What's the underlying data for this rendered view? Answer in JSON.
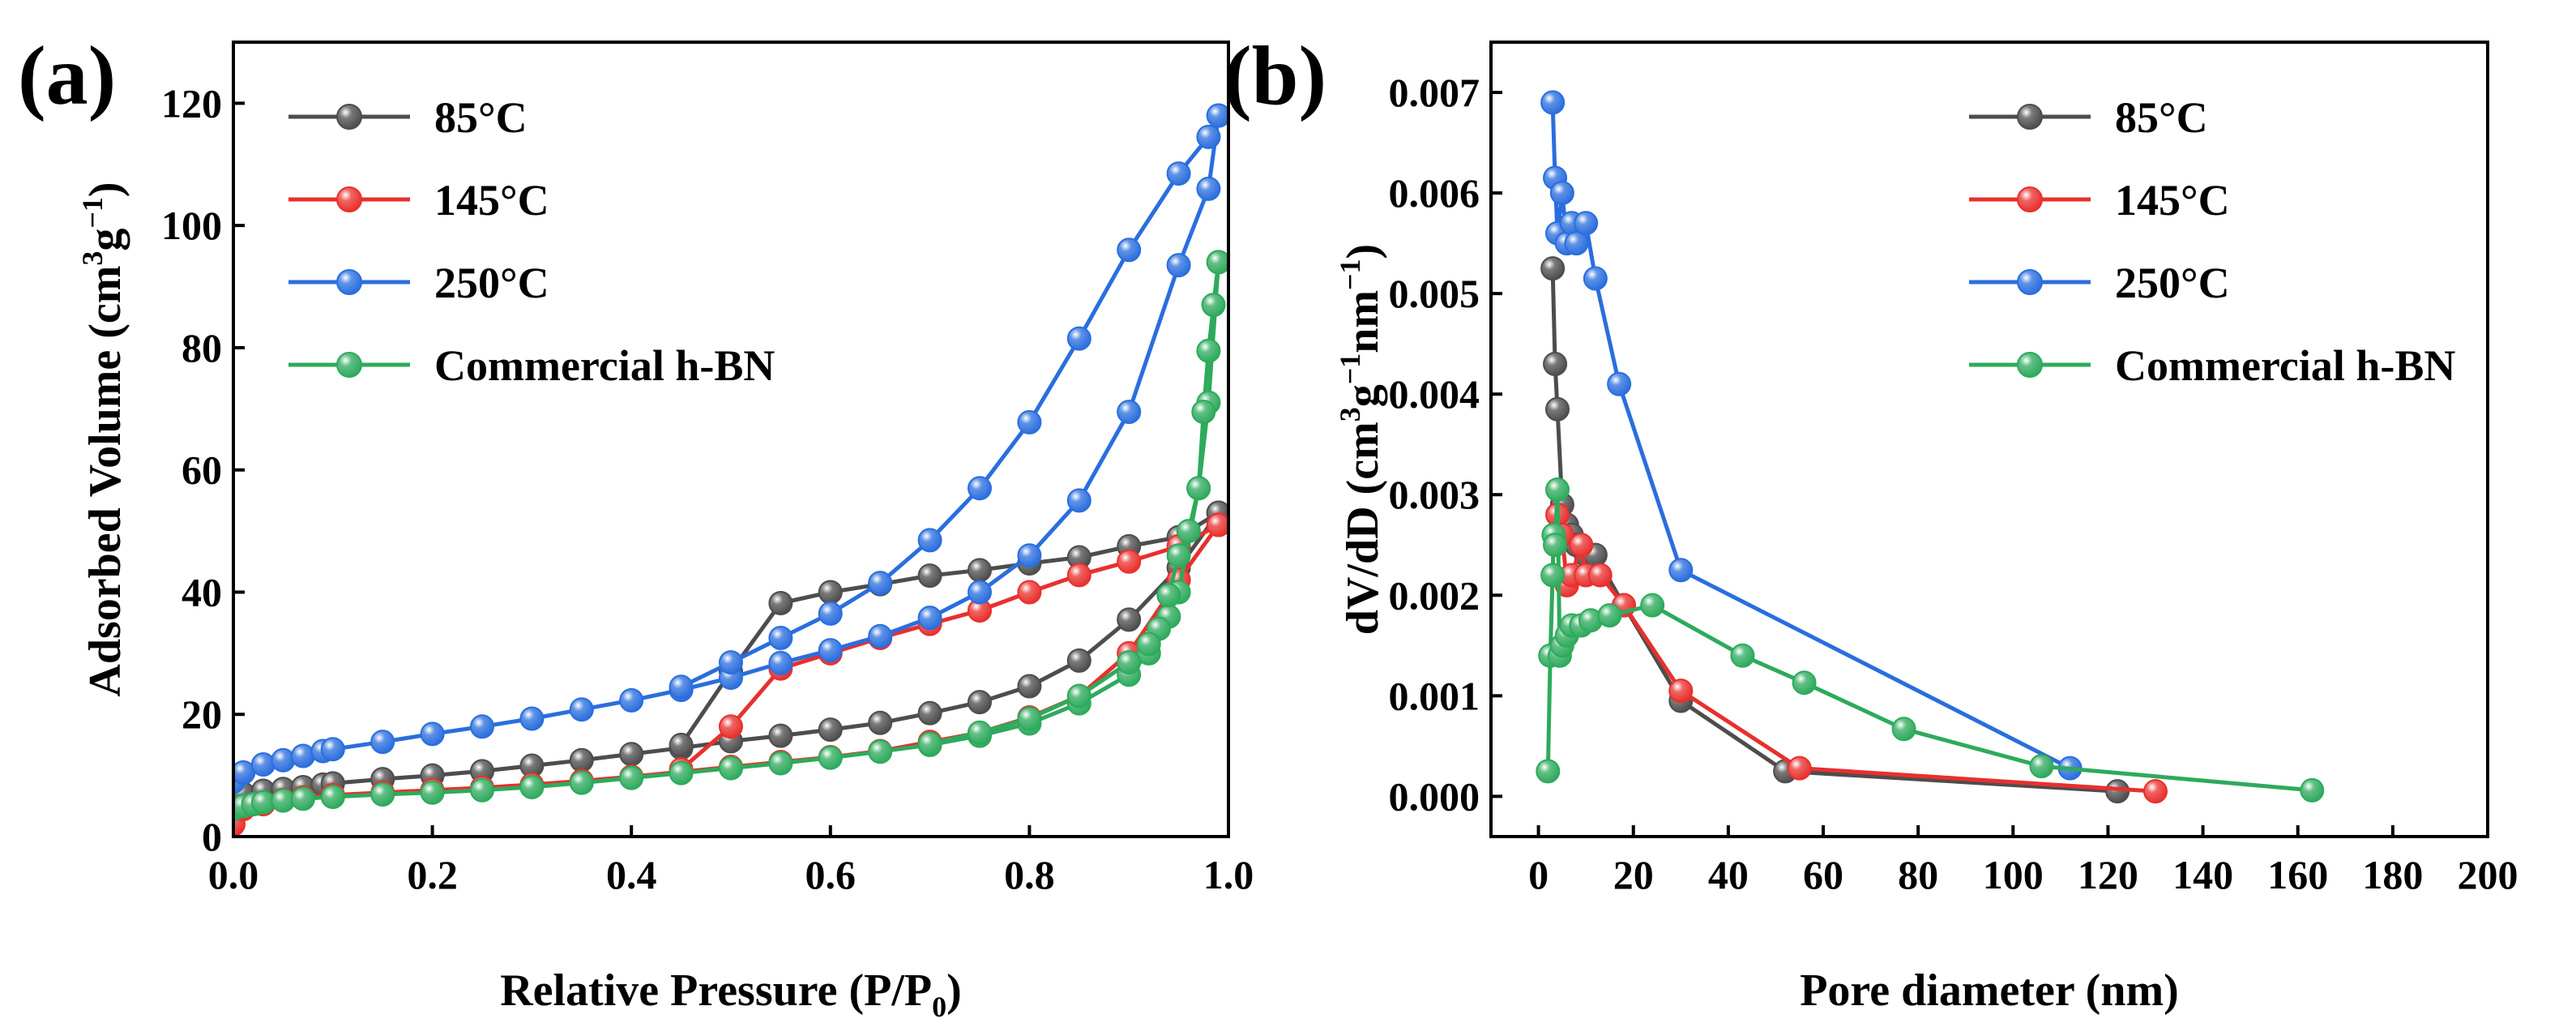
{
  "chart_data": [
    {
      "panel_label": "(a)",
      "type": "line",
      "xlabel": "Relative Pressure (P/P",
      "xlabel_sub": "0",
      "xlabel_end": ")",
      "ylabel": "Adsorbed Volume (cm",
      "ylabel_sup1": "3",
      "ylabel_mid": "g",
      "ylabel_sup2": "−1",
      "ylabel_end": ")",
      "xlim": [
        0.0,
        1.0
      ],
      "ylim": [
        0,
        130
      ],
      "xticks": [
        "0.0",
        "0.2",
        "0.4",
        "0.6",
        "0.8",
        "1.0"
      ],
      "xtick_values": [
        0.0,
        0.2,
        0.4,
        0.6,
        0.8,
        1.0
      ],
      "yticks": [
        "0",
        "20",
        "40",
        "60",
        "80",
        "100",
        "120"
      ],
      "ytick_values": [
        0,
        20,
        40,
        60,
        80,
        100,
        120
      ],
      "grid": false,
      "legend_position": "top-left",
      "series": [
        {
          "name": "85°C",
          "color": "#4d4d4d",
          "adsorption": [
            [
              0.0,
              6
            ],
            [
              0.01,
              7
            ],
            [
              0.03,
              7.5
            ],
            [
              0.05,
              7.8
            ],
            [
              0.07,
              8.1
            ],
            [
              0.09,
              8.5
            ],
            [
              0.1,
              8.7
            ],
            [
              0.15,
              9.4
            ],
            [
              0.2,
              10
            ],
            [
              0.25,
              10.7
            ],
            [
              0.3,
              11.6
            ],
            [
              0.35,
              12.5
            ],
            [
              0.4,
              13.5
            ],
            [
              0.45,
              14.5
            ],
            [
              0.5,
              15.6
            ],
            [
              0.55,
              16.5
            ],
            [
              0.6,
              17.5
            ],
            [
              0.65,
              18.6
            ],
            [
              0.7,
              20.2
            ],
            [
              0.75,
              22
            ],
            [
              0.8,
              24.6
            ],
            [
              0.85,
              28.8
            ],
            [
              0.9,
              35.5
            ],
            [
              0.95,
              44
            ],
            [
              0.99,
              53
            ]
          ],
          "desorption": [
            [
              0.99,
              53
            ],
            [
              0.95,
              49
            ],
            [
              0.9,
              47.5
            ],
            [
              0.85,
              45.7
            ],
            [
              0.8,
              44.7
            ],
            [
              0.75,
              43.6
            ],
            [
              0.7,
              42.7
            ],
            [
              0.65,
              41.3
            ],
            [
              0.6,
              40
            ],
            [
              0.55,
              38.2
            ],
            [
              0.5,
              27
            ],
            [
              0.45,
              15
            ]
          ]
        },
        {
          "name": "145°C",
          "color": "#e8302d",
          "adsorption": [
            [
              0.0,
              2
            ],
            [
              0.01,
              4.5
            ],
            [
              0.03,
              5.3
            ],
            [
              0.05,
              6
            ],
            [
              0.07,
              6.4
            ],
            [
              0.1,
              6.8
            ],
            [
              0.15,
              7.2
            ],
            [
              0.2,
              7.6
            ],
            [
              0.25,
              8
            ],
            [
              0.3,
              8.5
            ],
            [
              0.35,
              9.1
            ],
            [
              0.4,
              9.8
            ],
            [
              0.45,
              10.6
            ],
            [
              0.5,
              11.4
            ],
            [
              0.55,
              12.2
            ],
            [
              0.6,
              13
            ],
            [
              0.65,
              14
            ],
            [
              0.7,
              15.5
            ],
            [
              0.75,
              17
            ],
            [
              0.8,
              19.5
            ],
            [
              0.85,
              23
            ],
            [
              0.9,
              30
            ],
            [
              0.95,
              42
            ],
            [
              0.99,
              51
            ]
          ],
          "desorption": [
            [
              0.99,
              51
            ],
            [
              0.95,
              47.5
            ],
            [
              0.9,
              45
            ],
            [
              0.85,
              42.8
            ],
            [
              0.8,
              40
            ],
            [
              0.75,
              37
            ],
            [
              0.7,
              34.8
            ],
            [
              0.65,
              32.5
            ],
            [
              0.6,
              30
            ],
            [
              0.55,
              27.5
            ],
            [
              0.5,
              18
            ],
            [
              0.45,
              11
            ]
          ]
        },
        {
          "name": "250°C",
          "color": "#2a6ede",
          "adsorption": [
            [
              0.0,
              9
            ],
            [
              0.01,
              10.5
            ],
            [
              0.03,
              11.8
            ],
            [
              0.05,
              12.5
            ],
            [
              0.07,
              13.2
            ],
            [
              0.09,
              14
            ],
            [
              0.1,
              14.3
            ],
            [
              0.15,
              15.5
            ],
            [
              0.2,
              16.8
            ],
            [
              0.25,
              18
            ],
            [
              0.3,
              19.3
            ],
            [
              0.35,
              20.8
            ],
            [
              0.4,
              22.3
            ],
            [
              0.45,
              24
            ],
            [
              0.5,
              26
            ],
            [
              0.55,
              28.4
            ],
            [
              0.6,
              30.5
            ],
            [
              0.65,
              32.8
            ],
            [
              0.7,
              35.8
            ],
            [
              0.75,
              40
            ],
            [
              0.8,
              46
            ],
            [
              0.85,
              55
            ],
            [
              0.9,
              69.5
            ],
            [
              0.95,
              93.5
            ],
            [
              0.98,
              106
            ],
            [
              0.99,
              118
            ]
          ],
          "desorption": [
            [
              0.99,
              118
            ],
            [
              0.98,
              114.5
            ],
            [
              0.95,
              108.5
            ],
            [
              0.9,
              96
            ],
            [
              0.85,
              81.5
            ],
            [
              0.8,
              67.8
            ],
            [
              0.75,
              57
            ],
            [
              0.7,
              48.5
            ],
            [
              0.65,
              41.5
            ],
            [
              0.6,
              36.5
            ],
            [
              0.55,
              32.5
            ],
            [
              0.5,
              28.5
            ],
            [
              0.45,
              24.5
            ]
          ]
        },
        {
          "name": "Commercial h-BN",
          "color": "#2eaa5c",
          "adsorption": [
            [
              0.0,
              4.5
            ],
            [
              0.01,
              5
            ],
            [
              0.02,
              5.3
            ],
            [
              0.03,
              5.6
            ],
            [
              0.05,
              5.9
            ],
            [
              0.07,
              6.2
            ],
            [
              0.1,
              6.5
            ],
            [
              0.15,
              6.9
            ],
            [
              0.2,
              7.2
            ],
            [
              0.25,
              7.6
            ],
            [
              0.3,
              8.1
            ],
            [
              0.35,
              8.8
            ],
            [
              0.4,
              9.6
            ],
            [
              0.45,
              10.4
            ],
            [
              0.5,
              11.2
            ],
            [
              0.55,
              12
            ],
            [
              0.6,
              12.9
            ],
            [
              0.65,
              13.9
            ],
            [
              0.7,
              15
            ],
            [
              0.75,
              16.5
            ],
            [
              0.8,
              18.5
            ],
            [
              0.85,
              21.8
            ],
            [
              0.9,
              26.5
            ],
            [
              0.92,
              30
            ],
            [
              0.94,
              36
            ],
            [
              0.95,
              40
            ],
            [
              0.97,
              57
            ],
            [
              0.98,
              71
            ],
            [
              0.99,
              94
            ]
          ],
          "desorption": [
            [
              0.99,
              94
            ],
            [
              0.985,
              87
            ],
            [
              0.98,
              79.5
            ],
            [
              0.975,
              69.5
            ],
            [
              0.97,
              57
            ],
            [
              0.96,
              50
            ],
            [
              0.95,
              46
            ],
            [
              0.94,
              39.5
            ],
            [
              0.93,
              34
            ],
            [
              0.92,
              31.5
            ],
            [
              0.9,
              28.5
            ],
            [
              0.85,
              23
            ],
            [
              0.8,
              19.3
            ],
            [
              0.75,
              17
            ],
            [
              0.7,
              15.2
            ]
          ]
        }
      ]
    },
    {
      "panel_label": "(b)",
      "type": "line",
      "xlabel": "Pore diameter (nm)",
      "ylabel": "dV/dD (cm",
      "ylabel_sup1": "3",
      "ylabel_mid": "g",
      "ylabel_sup2": "−1",
      "ylabel_mid2": "nm",
      "ylabel_sup3": "−1",
      "ylabel_end": ")",
      "xlim": [
        -10,
        200
      ],
      "ylim": [
        -0.0004,
        0.0075
      ],
      "xticks": [
        "0",
        "20",
        "40",
        "60",
        "80",
        "100",
        "120",
        "140",
        "160",
        "180",
        "200"
      ],
      "xtick_values": [
        0,
        20,
        40,
        60,
        80,
        100,
        120,
        140,
        160,
        180,
        200
      ],
      "yticks": [
        "0.000",
        "0.001",
        "0.002",
        "0.003",
        "0.004",
        "0.005",
        "0.006",
        "0.007"
      ],
      "ytick_values": [
        0.0,
        0.001,
        0.002,
        0.003,
        0.004,
        0.005,
        0.006,
        0.007
      ],
      "grid": false,
      "legend_position": "top-right",
      "series": [
        {
          "name": "85°C",
          "color": "#4d4d4d",
          "points": [
            [
              3,
              0.00525
            ],
            [
              3.5,
              0.0043
            ],
            [
              4,
              0.00385
            ],
            [
              5,
              0.0029
            ],
            [
              6,
              0.0027
            ],
            [
              7,
              0.0026
            ],
            [
              8,
              0.0025
            ],
            [
              10,
              0.0024
            ],
            [
              12,
              0.0024
            ],
            [
              18,
              0.0019
            ],
            [
              30,
              0.00095
            ],
            [
              52,
              0.00025
            ],
            [
              122,
              5e-05
            ]
          ]
        },
        {
          "name": "145°C",
          "color": "#e8302d",
          "points": [
            [
              4,
              0.0028
            ],
            [
              5,
              0.0026
            ],
            [
              6,
              0.0021
            ],
            [
              7,
              0.0022
            ],
            [
              9,
              0.0025
            ],
            [
              10,
              0.0022
            ],
            [
              13,
              0.0022
            ],
            [
              18,
              0.0019
            ],
            [
              30,
              0.00105
            ],
            [
              55,
              0.00028
            ],
            [
              130,
              5e-05
            ]
          ]
        },
        {
          "name": "250°C",
          "color": "#2a6ede",
          "points": [
            [
              3,
              0.0069
            ],
            [
              3.5,
              0.00615
            ],
            [
              4,
              0.0056
            ],
            [
              5,
              0.006
            ],
            [
              6,
              0.0055
            ],
            [
              7,
              0.0057
            ],
            [
              8,
              0.0055
            ],
            [
              10,
              0.0057
            ],
            [
              12,
              0.00515
            ],
            [
              17,
              0.0041
            ],
            [
              30,
              0.00225
            ],
            [
              112,
              0.00028
            ]
          ]
        },
        {
          "name": "Commercial h-BN",
          "color": "#2eaa5c",
          "points": [
            [
              2,
              0.00025
            ],
            [
              2.5,
              0.0014
            ],
            [
              3,
              0.0022
            ],
            [
              3.2,
              0.0026
            ],
            [
              3.5,
              0.0025
            ],
            [
              4,
              0.00305
            ],
            [
              4.5,
              0.0014
            ],
            [
              5,
              0.0015
            ],
            [
              6,
              0.0016
            ],
            [
              7,
              0.0017
            ],
            [
              9,
              0.0017
            ],
            [
              11,
              0.00175
            ],
            [
              15,
              0.0018
            ],
            [
              24,
              0.0019
            ],
            [
              43,
              0.0014
            ],
            [
              56,
              0.00113
            ],
            [
              77,
              0.00067
            ],
            [
              106,
              0.0003
            ],
            [
              163,
              6e-05
            ]
          ]
        }
      ]
    }
  ]
}
